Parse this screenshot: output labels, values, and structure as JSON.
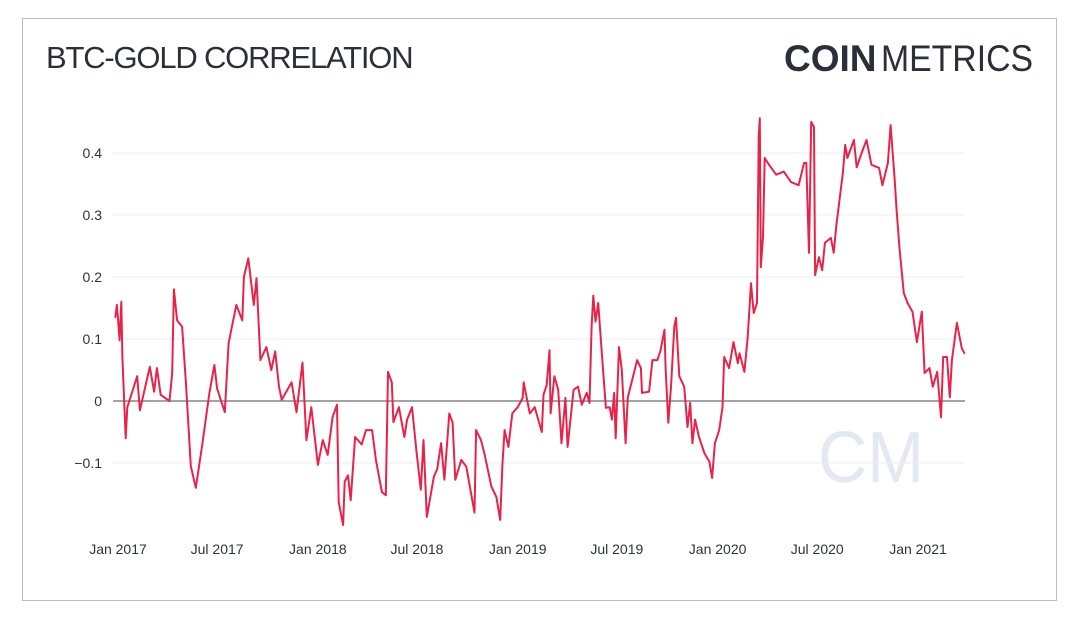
{
  "chart_data": {
    "type": "line",
    "title": "BTC-GOLD CORRELATION",
    "brand": {
      "bold": "COIN",
      "light": "METRICS",
      "watermark": "CM"
    },
    "xlabel": "",
    "ylabel": "",
    "ylim": [
      -0.2,
      0.46
    ],
    "yticks": [
      -0.1,
      0,
      0.1,
      0.2,
      0.3,
      0.4
    ],
    "ytick_labels": [
      "−0.1",
      "0",
      "0.1",
      "0.2",
      "0.3",
      "0.4"
    ],
    "xticks": [
      "2017-01-01",
      "2017-07-01",
      "2018-01-01",
      "2018-07-01",
      "2019-01-01",
      "2019-07-01",
      "2020-01-01",
      "2020-07-01",
      "2021-01-01"
    ],
    "xtick_labels": [
      "Jan 2017",
      "Jul 2017",
      "Jan 2018",
      "Jul 2018",
      "Jan 2019",
      "Jul 2019",
      "Jan 2020",
      "Jul 2020",
      "Jan 2021"
    ],
    "grid": true,
    "colors": {
      "line": "#e8234a",
      "grid": "#eeeeee",
      "zero_line": "#a3a3a6",
      "text": "#2b2f3a",
      "watermark": "#e4e8f0"
    },
    "series": [
      {
        "points": [
          [
            "2016-12-27",
            0.135
          ],
          [
            "2016-12-30",
            0.155
          ],
          [
            "2017-01-04",
            0.098
          ],
          [
            "2017-01-07",
            0.16
          ],
          [
            "2017-01-09",
            0.07
          ],
          [
            "2017-01-15",
            -0.06
          ],
          [
            "2017-01-18",
            -0.01
          ],
          [
            "2017-02-05",
            0.04
          ],
          [
            "2017-02-10",
            -0.015
          ],
          [
            "2017-02-28",
            0.055
          ],
          [
            "2017-03-08",
            0.015
          ],
          [
            "2017-03-13",
            0.053
          ],
          [
            "2017-03-20",
            0.01
          ],
          [
            "2017-04-05",
            0
          ],
          [
            "2017-04-10",
            0.045
          ],
          [
            "2017-04-13",
            0.18
          ],
          [
            "2017-04-19",
            0.13
          ],
          [
            "2017-04-28",
            0.12
          ],
          [
            "2017-05-05",
            0.03
          ],
          [
            "2017-05-14",
            -0.105
          ],
          [
            "2017-05-23",
            -0.14
          ],
          [
            "2017-06-04",
            -0.07
          ],
          [
            "2017-06-17",
            0.013
          ],
          [
            "2017-06-26",
            0.058
          ],
          [
            "2017-07-01",
            0.02
          ],
          [
            "2017-07-15",
            -0.018
          ],
          [
            "2017-07-22",
            0.093
          ],
          [
            "2017-08-05",
            0.155
          ],
          [
            "2017-08-16",
            0.13
          ],
          [
            "2017-08-19",
            0.2
          ],
          [
            "2017-08-27",
            0.23
          ],
          [
            "2017-09-06",
            0.155
          ],
          [
            "2017-09-11",
            0.198
          ],
          [
            "2017-09-18",
            0.066
          ],
          [
            "2017-09-29",
            0.087
          ],
          [
            "2017-10-08",
            0.05
          ],
          [
            "2017-10-15",
            0.08
          ],
          [
            "2017-10-22",
            0.023
          ],
          [
            "2017-10-27",
            0.002
          ],
          [
            "2017-11-14",
            0.03
          ],
          [
            "2017-11-23",
            -0.018
          ],
          [
            "2017-12-04",
            0.062
          ],
          [
            "2017-12-11",
            -0.063
          ],
          [
            "2017-12-20",
            -0.01
          ],
          [
            "2018-01-01",
            -0.103
          ],
          [
            "2018-01-10",
            -0.063
          ],
          [
            "2018-01-19",
            -0.087
          ],
          [
            "2018-01-28",
            -0.026
          ],
          [
            "2018-02-05",
            -0.006
          ],
          [
            "2018-02-08",
            -0.163
          ],
          [
            "2018-02-16",
            -0.2
          ],
          [
            "2018-02-19",
            -0.13
          ],
          [
            "2018-02-25",
            -0.12
          ],
          [
            "2018-03-02",
            -0.16
          ],
          [
            "2018-03-10",
            -0.058
          ],
          [
            "2018-03-22",
            -0.07
          ],
          [
            "2018-03-30",
            -0.047
          ],
          [
            "2018-04-10",
            -0.047
          ],
          [
            "2018-04-17",
            -0.095
          ],
          [
            "2018-04-28",
            -0.147
          ],
          [
            "2018-05-05",
            -0.152
          ],
          [
            "2018-05-09",
            0.047
          ],
          [
            "2018-05-16",
            0.03
          ],
          [
            "2018-05-19",
            -0.034
          ],
          [
            "2018-05-29",
            -0.01
          ],
          [
            "2018-06-08",
            -0.058
          ],
          [
            "2018-06-13",
            -0.03
          ],
          [
            "2018-06-22",
            -0.01
          ],
          [
            "2018-06-30",
            -0.08
          ],
          [
            "2018-07-08",
            -0.143
          ],
          [
            "2018-07-13",
            -0.063
          ],
          [
            "2018-07-19",
            -0.187
          ],
          [
            "2018-08-01",
            -0.122
          ],
          [
            "2018-08-07",
            -0.11
          ],
          [
            "2018-08-14",
            -0.068
          ],
          [
            "2018-08-20",
            -0.127
          ],
          [
            "2018-08-29",
            -0.02
          ],
          [
            "2018-09-04",
            -0.035
          ],
          [
            "2018-09-09",
            -0.127
          ],
          [
            "2018-09-20",
            -0.095
          ],
          [
            "2018-09-29",
            -0.106
          ],
          [
            "2018-10-14",
            -0.18
          ],
          [
            "2018-10-17",
            -0.047
          ],
          [
            "2018-10-26",
            -0.063
          ],
          [
            "2018-11-01",
            -0.084
          ],
          [
            "2018-11-14",
            -0.138
          ],
          [
            "2018-11-23",
            -0.155
          ],
          [
            "2018-11-30",
            -0.192
          ],
          [
            "2018-12-04",
            -0.103
          ],
          [
            "2018-12-08",
            -0.047
          ],
          [
            "2018-12-15",
            -0.074
          ],
          [
            "2018-12-22",
            -0.02
          ],
          [
            "2019-01-01",
            -0.01
          ],
          [
            "2019-01-10",
            0.005
          ],
          [
            "2019-01-12",
            0.03
          ],
          [
            "2019-01-23",
            -0.02
          ],
          [
            "2019-02-01",
            -0.01
          ],
          [
            "2019-02-14",
            -0.05
          ],
          [
            "2019-02-17",
            0.01
          ],
          [
            "2019-02-23",
            0.026
          ],
          [
            "2019-02-28",
            0.082
          ],
          [
            "2019-03-02",
            -0.02
          ],
          [
            "2019-03-09",
            0.04
          ],
          [
            "2019-03-16",
            0.018
          ],
          [
            "2019-03-22",
            -0.068
          ],
          [
            "2019-03-29",
            0.005
          ],
          [
            "2019-04-02",
            -0.074
          ],
          [
            "2019-04-13",
            0.018
          ],
          [
            "2019-04-21",
            0.023
          ],
          [
            "2019-04-28",
            -0.006
          ],
          [
            "2019-05-07",
            0.013
          ],
          [
            "2019-05-12",
            -0.003
          ],
          [
            "2019-05-16",
            0.12
          ],
          [
            "2019-05-19",
            0.17
          ],
          [
            "2019-05-23",
            0.128
          ],
          [
            "2019-05-28",
            0.158
          ],
          [
            "2019-06-04",
            0.071
          ],
          [
            "2019-06-11",
            -0.011
          ],
          [
            "2019-06-18",
            -0.01
          ],
          [
            "2019-06-22",
            -0.03
          ],
          [
            "2019-06-26",
            0.013
          ],
          [
            "2019-06-29",
            -0.06
          ],
          [
            "2019-07-05",
            0.087
          ],
          [
            "2019-07-10",
            0.05
          ],
          [
            "2019-07-17",
            -0.068
          ],
          [
            "2019-07-21",
            0.006
          ],
          [
            "2019-07-28",
            0.03
          ],
          [
            "2019-08-07",
            0.066
          ],
          [
            "2019-08-14",
            0.053
          ],
          [
            "2019-08-16",
            0.013
          ],
          [
            "2019-08-29",
            0.015
          ],
          [
            "2019-09-04",
            0.066
          ],
          [
            "2019-09-13",
            0.066
          ],
          [
            "2019-09-19",
            0.082
          ],
          [
            "2019-09-26",
            0.115
          ],
          [
            "2019-09-28",
            0.053
          ],
          [
            "2019-10-03",
            -0.035
          ],
          [
            "2019-10-08",
            0.023
          ],
          [
            "2019-10-14",
            0.12
          ],
          [
            "2019-10-17",
            0.134
          ],
          [
            "2019-10-23",
            0.04
          ],
          [
            "2019-11-01",
            0.023
          ],
          [
            "2019-11-07",
            -0.042
          ],
          [
            "2019-11-12",
            -0.003
          ],
          [
            "2019-11-16",
            -0.068
          ],
          [
            "2019-11-21",
            -0.03
          ],
          [
            "2019-11-28",
            -0.058
          ],
          [
            "2019-12-08",
            -0.084
          ],
          [
            "2019-12-17",
            -0.098
          ],
          [
            "2019-12-22",
            -0.124
          ],
          [
            "2019-12-27",
            -0.068
          ],
          [
            "2020-01-04",
            -0.047
          ],
          [
            "2020-01-10",
            -0.01
          ],
          [
            "2020-01-13",
            0.071
          ],
          [
            "2020-01-22",
            0.053
          ],
          [
            "2020-01-30",
            0.095
          ],
          [
            "2020-02-07",
            0.061
          ],
          [
            "2020-02-10",
            0.077
          ],
          [
            "2020-02-19",
            0.047
          ],
          [
            "2020-02-25",
            0.103
          ],
          [
            "2020-03-02",
            0.19
          ],
          [
            "2020-03-07",
            0.142
          ],
          [
            "2020-03-13",
            0.158
          ],
          [
            "2020-03-16",
            0.426
          ],
          [
            "2020-03-18",
            0.456
          ],
          [
            "2020-03-20",
            0.216
          ],
          [
            "2020-03-24",
            0.265
          ],
          [
            "2020-03-27",
            0.392
          ],
          [
            "2020-04-04",
            0.381
          ],
          [
            "2020-04-17",
            0.365
          ],
          [
            "2020-05-01",
            0.37
          ],
          [
            "2020-05-14",
            0.353
          ],
          [
            "2020-05-28",
            0.348
          ],
          [
            "2020-06-07",
            0.384
          ],
          [
            "2020-06-11",
            0.384
          ],
          [
            "2020-06-16",
            0.239
          ],
          [
            "2020-06-20",
            0.45
          ],
          [
            "2020-06-25",
            0.442
          ],
          [
            "2020-06-27",
            0.203
          ],
          [
            "2020-07-04",
            0.232
          ],
          [
            "2020-07-10",
            0.211
          ],
          [
            "2020-07-15",
            0.255
          ],
          [
            "2020-07-26",
            0.263
          ],
          [
            "2020-07-31",
            0.239
          ],
          [
            "2020-08-05",
            0.284
          ],
          [
            "2020-08-10",
            0.319
          ],
          [
            "2020-08-17",
            0.37
          ],
          [
            "2020-08-21",
            0.413
          ],
          [
            "2020-08-25",
            0.392
          ],
          [
            "2020-09-06",
            0.421
          ],
          [
            "2020-09-11",
            0.377
          ],
          [
            "2020-09-20",
            0.4
          ],
          [
            "2020-09-29",
            0.421
          ],
          [
            "2020-10-08",
            0.381
          ],
          [
            "2020-10-22",
            0.376
          ],
          [
            "2020-10-28",
            0.348
          ],
          [
            "2020-11-07",
            0.384
          ],
          [
            "2020-11-12",
            0.445
          ],
          [
            "2020-11-19",
            0.361
          ],
          [
            "2020-11-23",
            0.308
          ],
          [
            "2020-11-28",
            0.248
          ],
          [
            "2020-12-06",
            0.174
          ],
          [
            "2020-12-13",
            0.158
          ],
          [
            "2020-12-22",
            0.144
          ],
          [
            "2020-12-30",
            0.095
          ],
          [
            "2021-01-08",
            0.144
          ],
          [
            "2021-01-13",
            0.045
          ],
          [
            "2021-01-22",
            0.053
          ],
          [
            "2021-01-28",
            0.023
          ],
          [
            "2021-02-05",
            0.047
          ],
          [
            "2021-02-12",
            -0.026
          ],
          [
            "2021-02-16",
            0.071
          ],
          [
            "2021-02-23",
            0.071
          ],
          [
            "2021-02-28",
            0.006
          ],
          [
            "2021-03-04",
            0.066
          ],
          [
            "2021-03-13",
            0.126
          ],
          [
            "2021-03-22",
            0.085
          ],
          [
            "2021-03-27",
            0.077
          ]
        ]
      }
    ]
  }
}
